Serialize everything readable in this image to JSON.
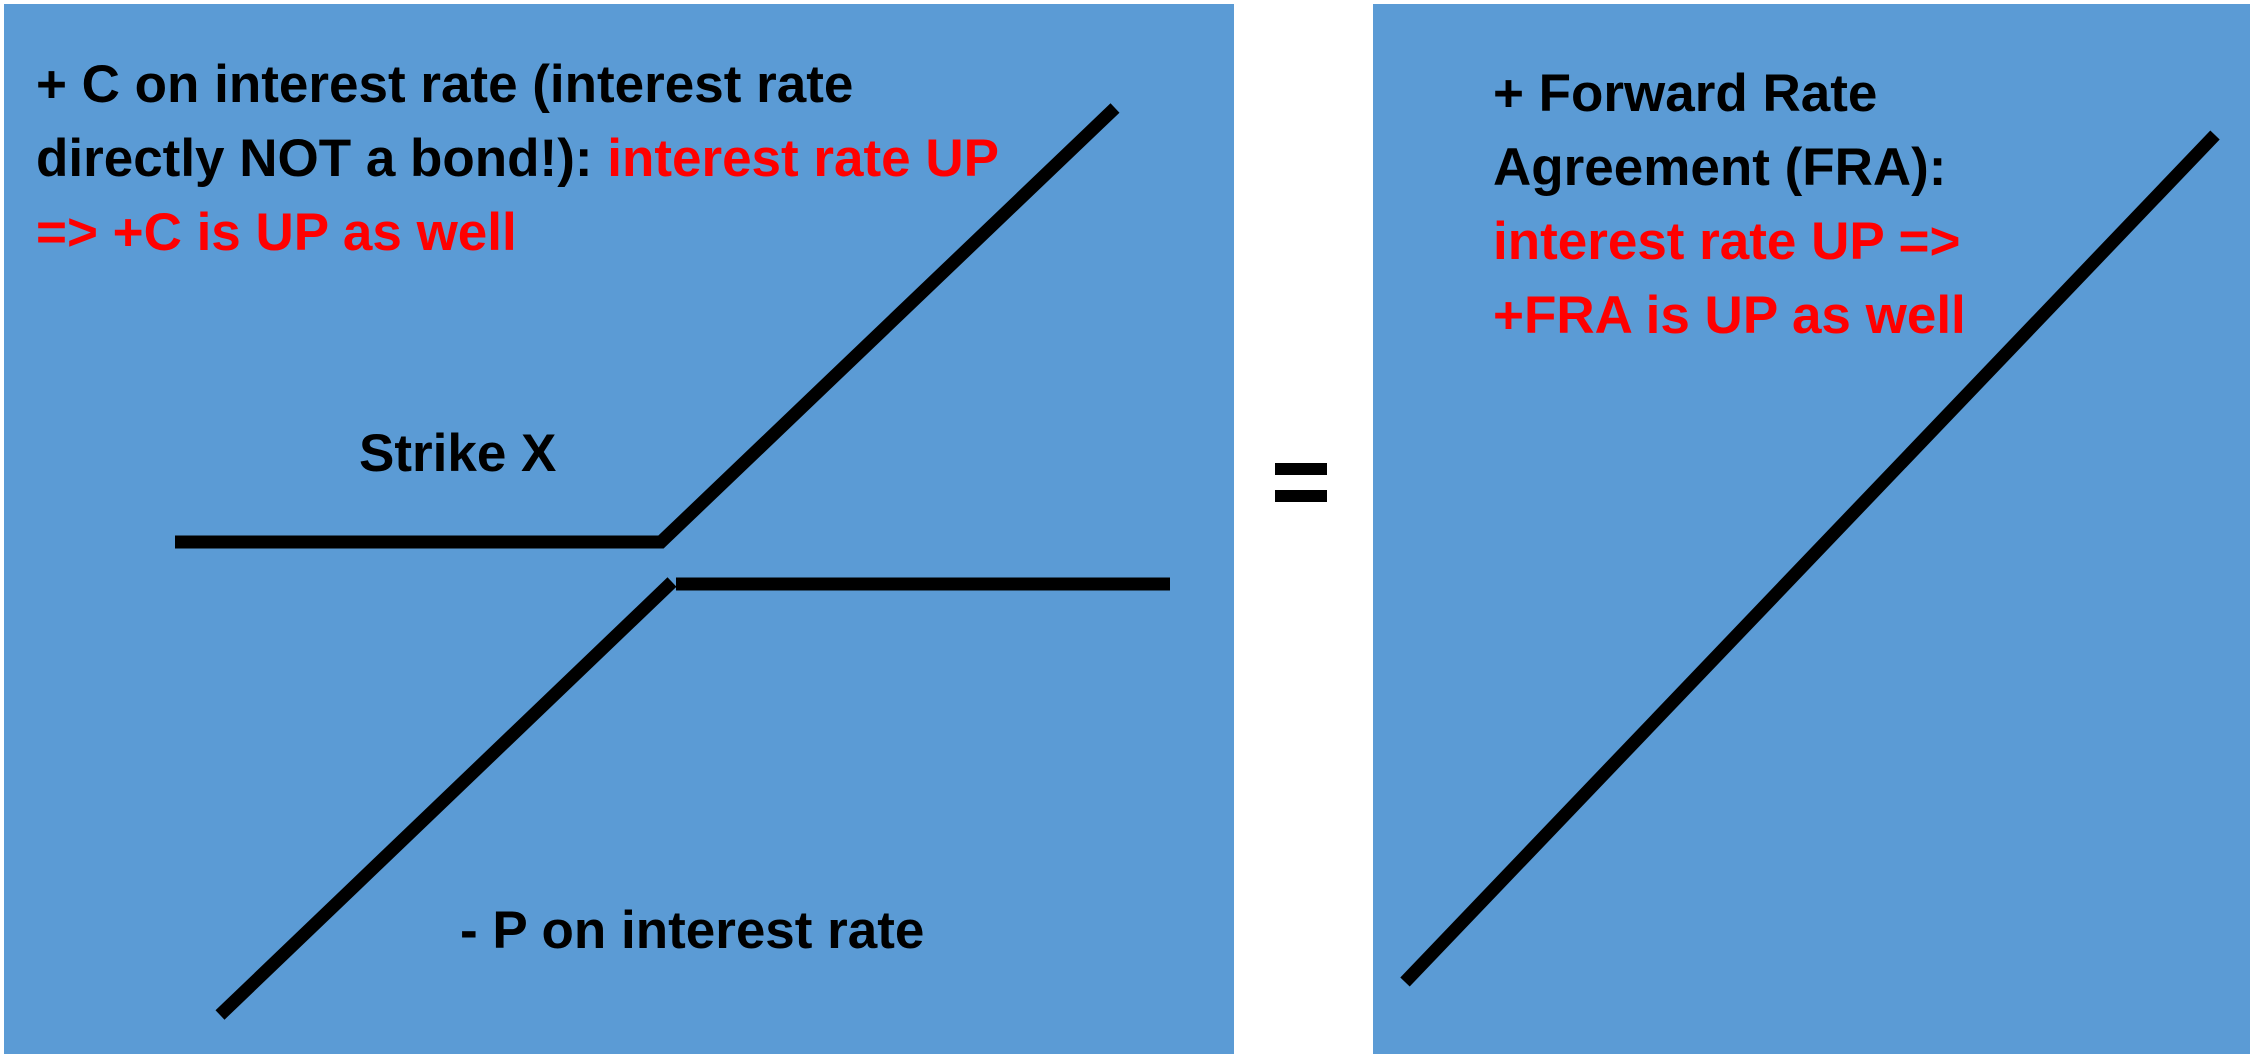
{
  "left_panel": {
    "call_label": {
      "black": "+ C on interest rate (interest rate directly NOT a bond!): ",
      "red": "interest rate UP => +C is UP as well"
    },
    "strike_label": "Strike X",
    "put_label": "- P on interest rate"
  },
  "right_panel": {
    "fra_label": {
      "black": "+ Forward Rate Agreement (FRA): ",
      "red": "interest rate UP => +FRA is UP as well"
    }
  },
  "colors": {
    "panel_background": "#5b9bd5",
    "highlight_text": "#ff0000",
    "line": "#000000"
  }
}
